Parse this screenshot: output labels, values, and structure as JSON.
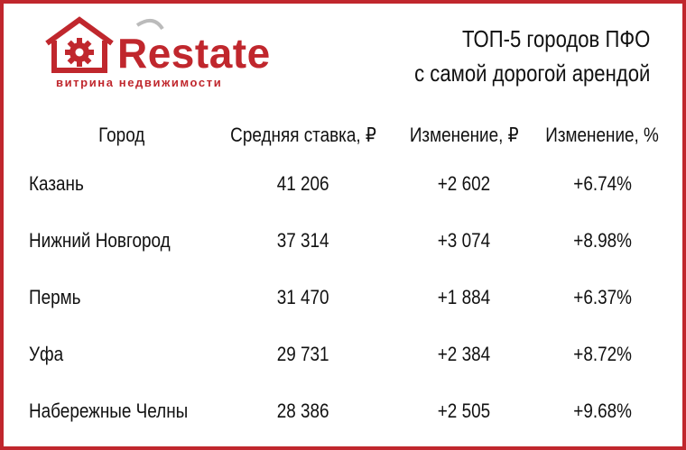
{
  "logo": {
    "brand": "Restate",
    "tagline": "витрина недвижимости"
  },
  "title": {
    "line1": "ТОП-5 городов ПФО",
    "line2": "с самой дорогой арендой"
  },
  "table": {
    "headers": [
      "Город",
      "Средняя ставка, ₽",
      "Изменение, ₽",
      "Изменение, %"
    ],
    "rows": [
      {
        "city": "Казань",
        "rate": "41 206",
        "change_abs": "+2 602",
        "change_pct": "+6.74%"
      },
      {
        "city": "Нижний Новгород",
        "rate": "37 314",
        "change_abs": "+3 074",
        "change_pct": "+8.98%"
      },
      {
        "city": "Пермь",
        "rate": "31 470",
        "change_abs": "+1 884",
        "change_pct": "+6.37%"
      },
      {
        "city": "Уфа",
        "rate": "29 731",
        "change_abs": "+2 384",
        "change_pct": "+8.72%"
      },
      {
        "city": "Набережные Челны",
        "rate": "28 386",
        "change_abs": "+2 505",
        "change_pct": "+9.68%"
      }
    ]
  },
  "colors": {
    "brand": "#c0272d",
    "text": "#111111",
    "background": "#ffffff"
  }
}
